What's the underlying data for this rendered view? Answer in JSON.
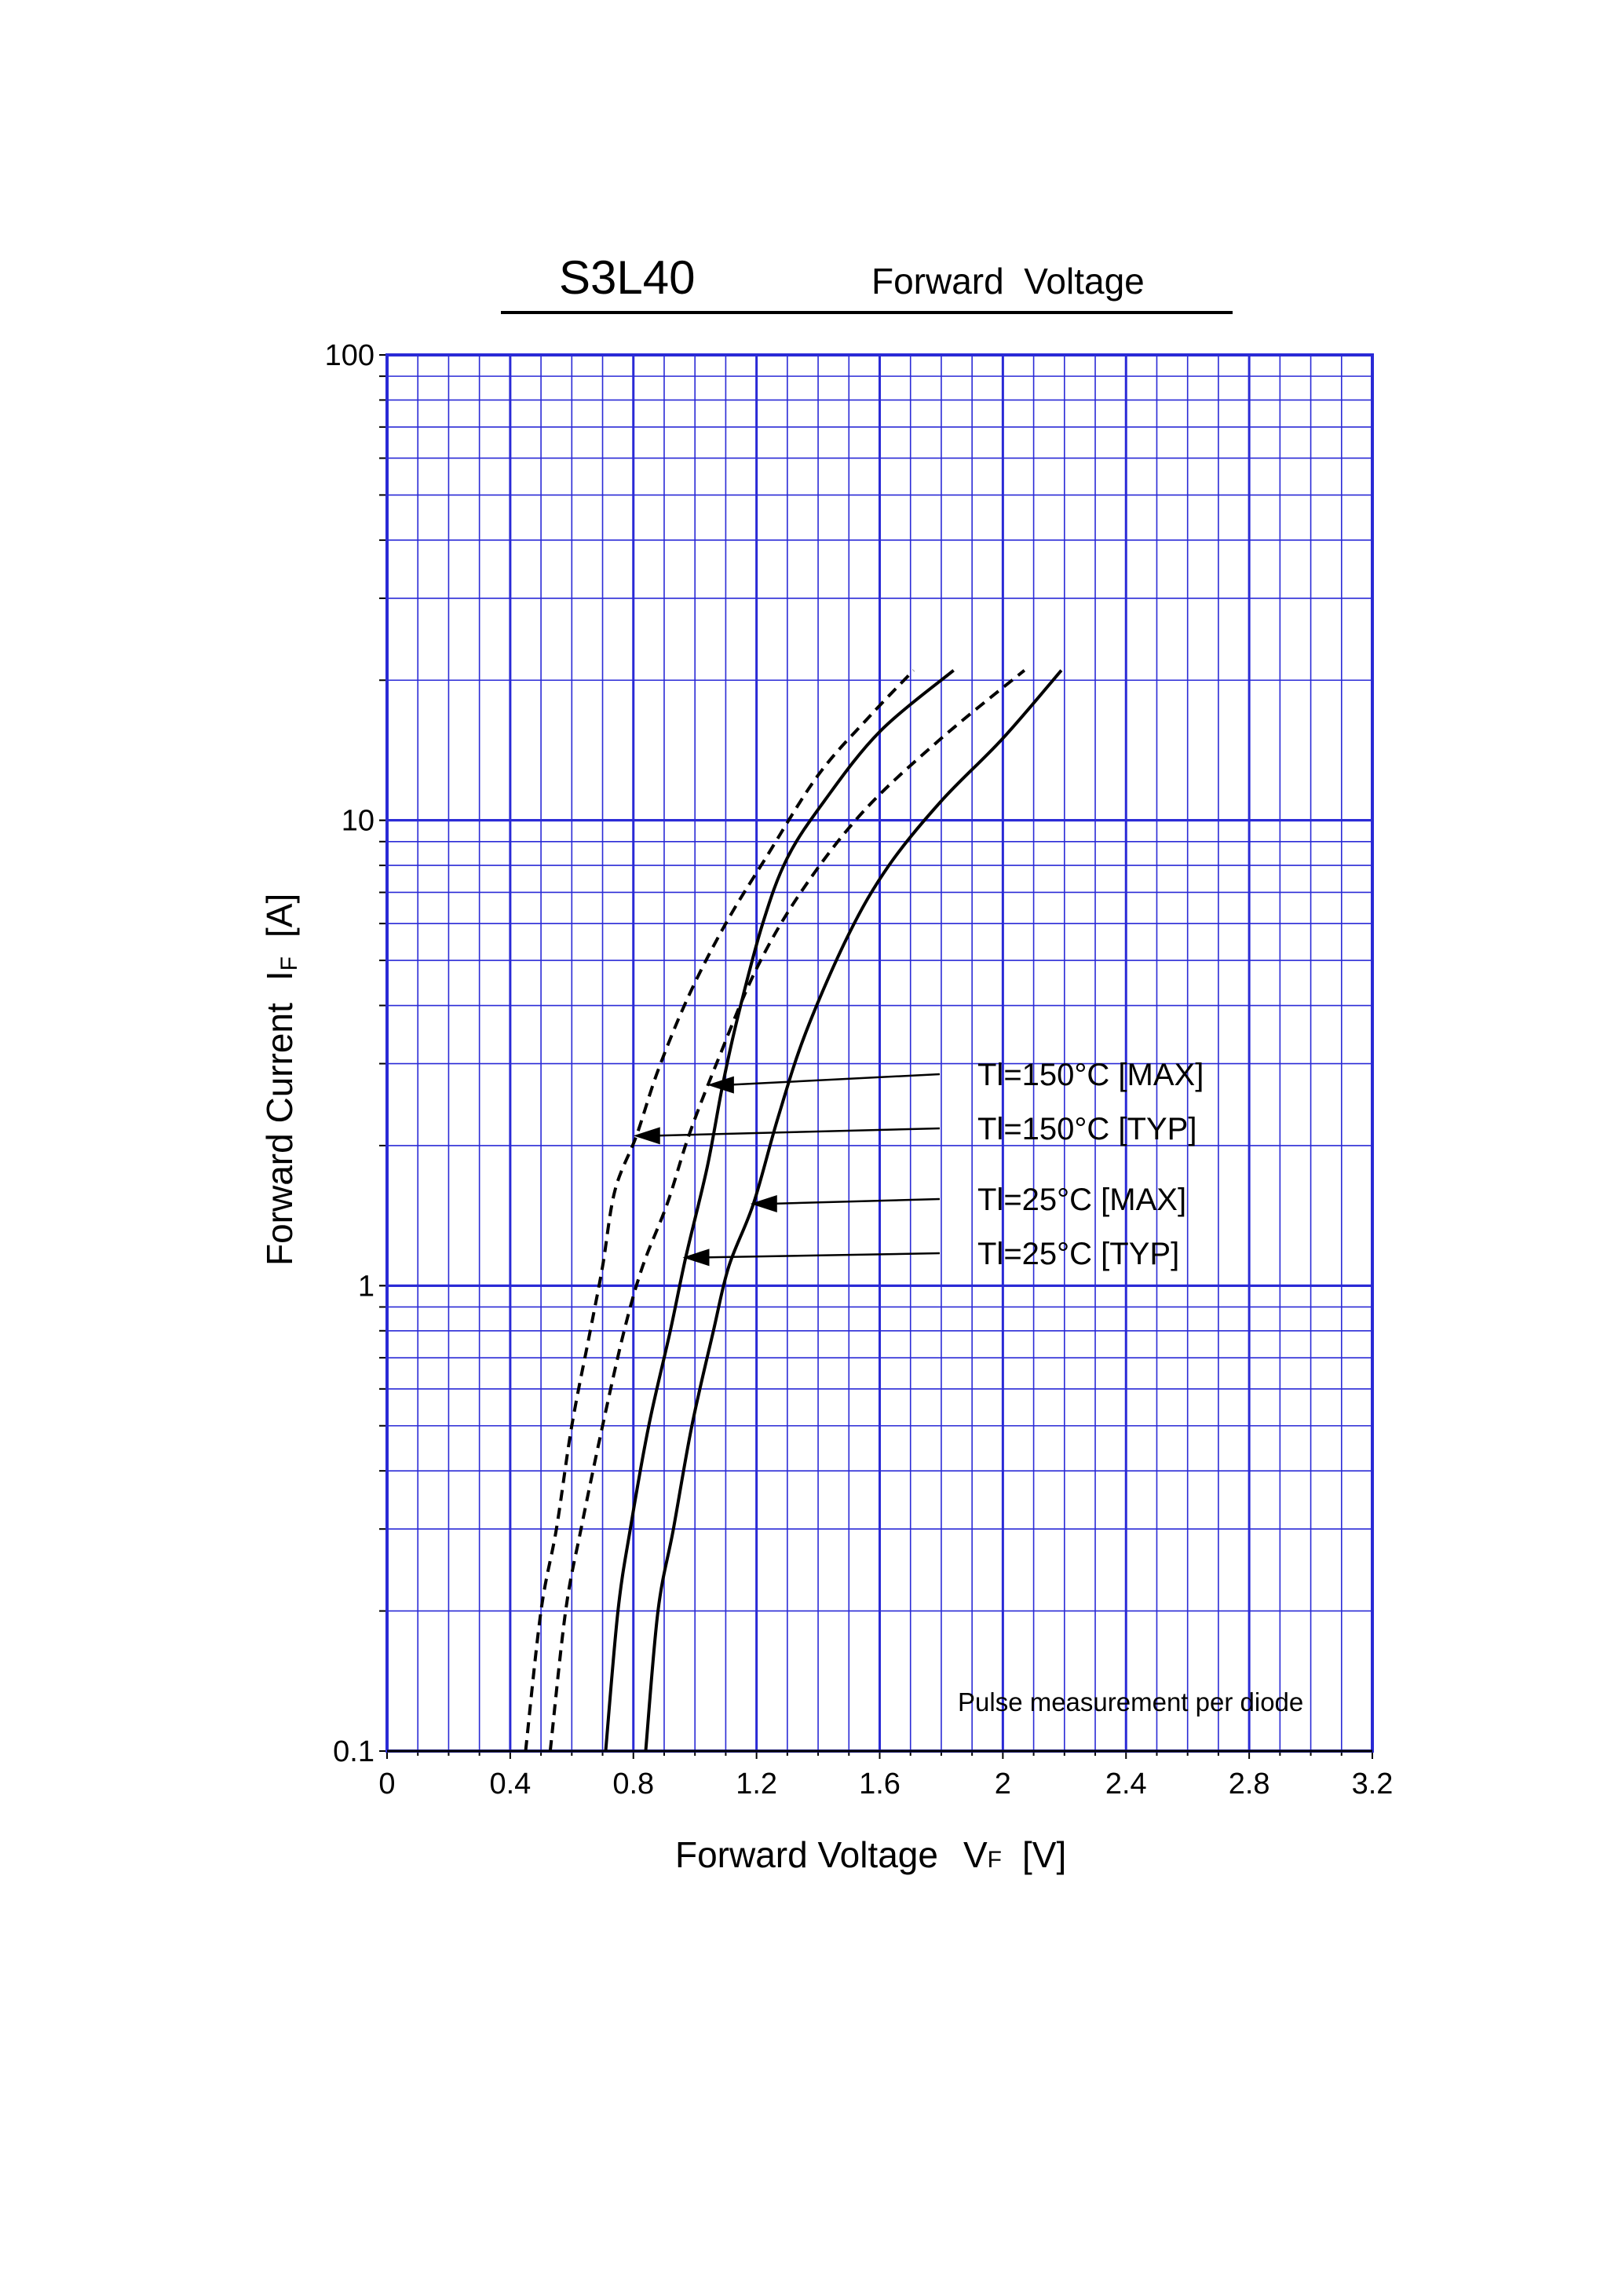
{
  "header": {
    "part_number": "S3L40",
    "title": "Forward  Voltage"
  },
  "chart_data": {
    "type": "line",
    "title": "Forward  Voltage",
    "xlabel": {
      "main": "Forward Voltage",
      "symbol": "V",
      "subscript": "F",
      "unit": "[V]"
    },
    "ylabel": {
      "main": "Forward Current",
      "symbol": "I",
      "subscript": "F",
      "unit": "[A]"
    },
    "xlim": [
      0,
      3.2
    ],
    "ylim": [
      0.1,
      100
    ],
    "yscale": "log",
    "grid": true,
    "x_ticks": [
      0,
      0.4,
      0.8,
      1.2,
      1.6,
      2,
      2.4,
      2.8,
      3.2
    ],
    "x_tick_labels": [
      "0",
      "0.4",
      "0.8",
      "1.2",
      "1.6",
      "2",
      "2.4",
      "2.8",
      "3.2"
    ],
    "y_ticks": [
      0.1,
      1,
      10,
      100
    ],
    "y_tick_labels": [
      "0.1",
      "1",
      "10",
      "100"
    ],
    "note": "Pulse measurement per diode",
    "colors": {
      "grid": "#2a2ad6",
      "curve": "#000000"
    },
    "series": [
      {
        "name": "Tl=150°C [MAX]",
        "style": "solid",
        "points": [
          [
            0.71,
            0.1
          ],
          [
            0.75,
            0.2
          ],
          [
            0.79,
            0.3
          ],
          [
            0.85,
            0.5
          ],
          [
            0.92,
            0.8
          ],
          [
            0.97,
            1.15
          ],
          [
            1.04,
            1.8
          ],
          [
            1.09,
            2.7
          ],
          [
            1.14,
            3.8
          ],
          [
            1.22,
            6
          ],
          [
            1.3,
            8.3
          ],
          [
            1.42,
            11
          ],
          [
            1.6,
            15.5
          ],
          [
            1.84,
            21
          ]
        ]
      },
      {
        "name": "Tl=150°C [TYP]",
        "style": "dashed",
        "points": [
          [
            0.45,
            0.1
          ],
          [
            0.5,
            0.2
          ],
          [
            0.55,
            0.3
          ],
          [
            0.6,
            0.5
          ],
          [
            0.66,
            0.8
          ],
          [
            0.7,
            1.1
          ],
          [
            0.74,
            1.6
          ],
          [
            0.81,
            2.1
          ],
          [
            0.88,
            2.9
          ],
          [
            0.98,
            4.2
          ],
          [
            1.1,
            6
          ],
          [
            1.23,
            8.3
          ],
          [
            1.4,
            12.5
          ],
          [
            1.57,
            16.8
          ],
          [
            1.71,
            21
          ]
        ]
      },
      {
        "name": "Tl=25°C [MAX]",
        "style": "solid",
        "points": [
          [
            0.84,
            0.1
          ],
          [
            0.88,
            0.2
          ],
          [
            0.93,
            0.3
          ],
          [
            0.99,
            0.5
          ],
          [
            1.06,
            0.8
          ],
          [
            1.11,
            1.1
          ],
          [
            1.19,
            1.5
          ],
          [
            1.27,
            2.3
          ],
          [
            1.36,
            3.5
          ],
          [
            1.5,
            5.7
          ],
          [
            1.63,
            8
          ],
          [
            1.8,
            11
          ],
          [
            2.0,
            15
          ],
          [
            2.19,
            21
          ]
        ]
      },
      {
        "name": "Tl=25°C [TYP]",
        "style": "dashed",
        "points": [
          [
            0.53,
            0.1
          ],
          [
            0.58,
            0.2
          ],
          [
            0.63,
            0.3
          ],
          [
            0.7,
            0.5
          ],
          [
            0.77,
            0.8
          ],
          [
            0.83,
            1.1
          ],
          [
            0.91,
            1.5
          ],
          [
            0.98,
            2.1
          ],
          [
            1.07,
            3
          ],
          [
            1.2,
            4.8
          ],
          [
            1.35,
            7.1
          ],
          [
            1.55,
            10.5
          ],
          [
            1.8,
            15
          ],
          [
            2.07,
            21
          ]
        ]
      }
    ],
    "legend": [
      {
        "label": "Tl=150°C [MAX]",
        "target": [
          1.04,
          2.7
        ]
      },
      {
        "label": "Tl=150°C [TYP]",
        "target": [
          0.8,
          2.1
        ]
      },
      {
        "label": "Tl=25°C [MAX]",
        "target": [
          1.18,
          1.5
        ]
      },
      {
        "label": "Tl=25°C [TYP]",
        "target": [
          0.96,
          1.15
        ]
      }
    ]
  }
}
